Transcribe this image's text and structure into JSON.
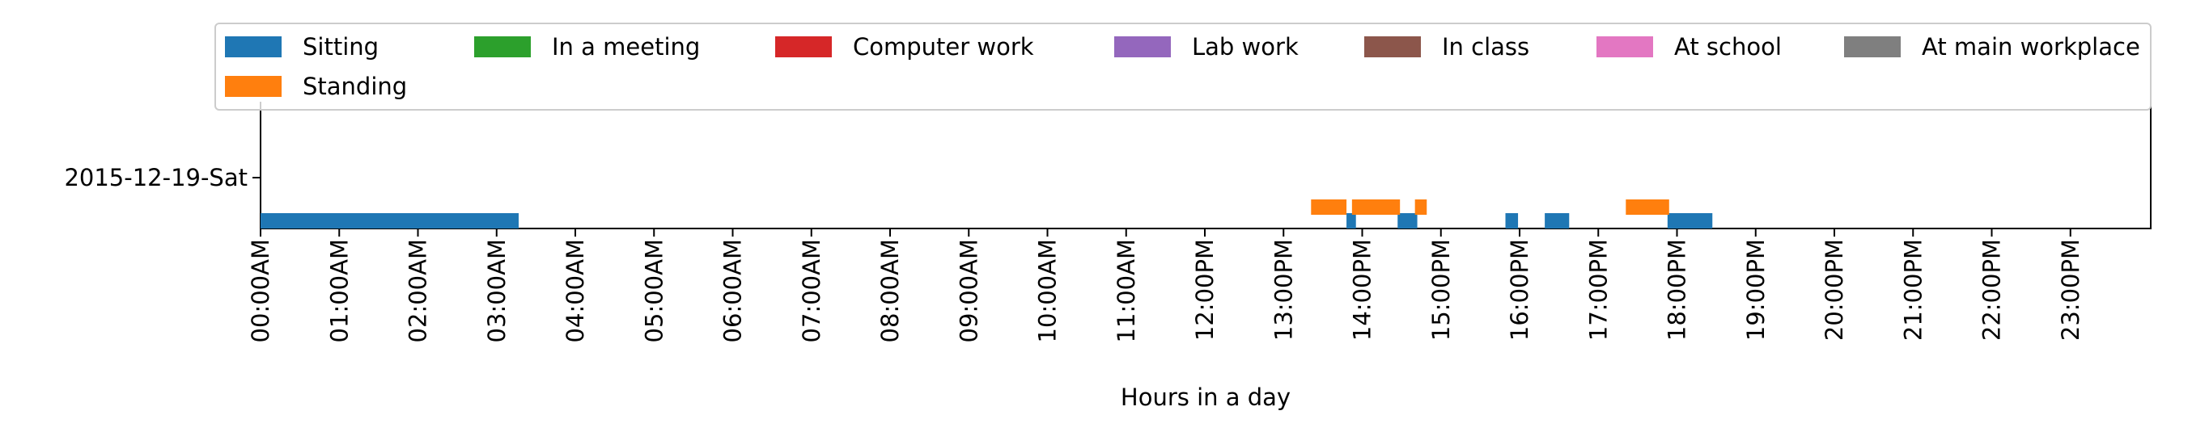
{
  "chart_data": {
    "type": "bar",
    "orientation": "horizontal-timeline",
    "xlabel": "Hours in a day",
    "ylabel": "",
    "xlim": [
      0,
      24
    ],
    "y_categories": [
      "2015-12-19-Sat"
    ],
    "x_tick_labels": [
      "00:00AM",
      "01:00AM",
      "02:00AM",
      "03:00AM",
      "04:00AM",
      "05:00AM",
      "06:00AM",
      "07:00AM",
      "08:00AM",
      "09:00AM",
      "10:00AM",
      "11:00AM",
      "12:00PM",
      "13:00PM",
      "14:00PM",
      "15:00PM",
      "16:00PM",
      "17:00PM",
      "18:00PM",
      "19:00PM",
      "20:00PM",
      "21:00PM",
      "22:00PM",
      "23:00PM"
    ],
    "legend_position": "top",
    "grid": false,
    "series": [
      {
        "name": "Sitting",
        "color": "#1f77b4",
        "intervals": [
          [
            0.0,
            3.28
          ],
          [
            13.8,
            13.92
          ],
          [
            14.45,
            14.7
          ],
          [
            15.82,
            15.98
          ],
          [
            16.32,
            16.63
          ],
          [
            17.88,
            18.45
          ]
        ]
      },
      {
        "name": "Standing",
        "color": "#ff7f0e",
        "intervals": [
          [
            13.35,
            13.8
          ],
          [
            13.87,
            14.48
          ],
          [
            14.67,
            14.82
          ],
          [
            17.35,
            17.9
          ]
        ]
      },
      {
        "name": "In a meeting",
        "color": "#2ca02c",
        "intervals": []
      },
      {
        "name": "Computer work",
        "color": "#d62728",
        "intervals": []
      },
      {
        "name": "Lab work",
        "color": "#9467bd",
        "intervals": []
      },
      {
        "name": "In class",
        "color": "#8c564b",
        "intervals": []
      },
      {
        "name": "At school",
        "color": "#e377c2",
        "intervals": []
      },
      {
        "name": "At main workplace",
        "color": "#7f7f7f",
        "intervals": []
      }
    ]
  }
}
